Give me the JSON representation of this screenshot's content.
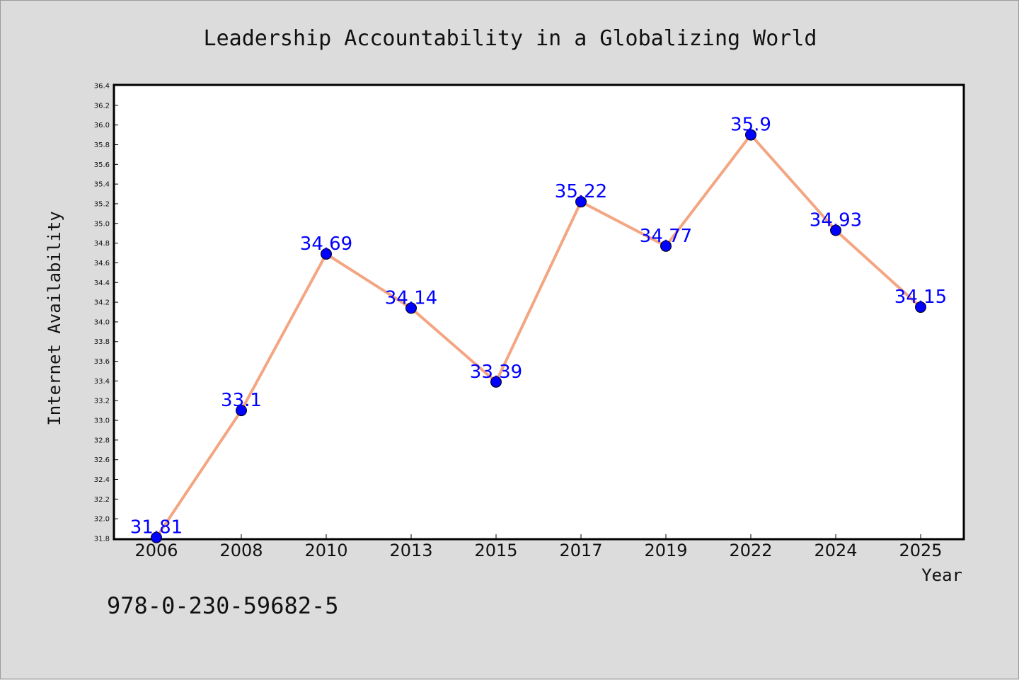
{
  "chart_data": {
    "type": "line",
    "title": "Leadership Accountability in a Globalizing World",
    "xlabel": "Year",
    "ylabel": "Internet Availability",
    "categories": [
      "2006",
      "2008",
      "2010",
      "2013",
      "2015",
      "2017",
      "2019",
      "2022",
      "2024",
      "2025"
    ],
    "series": [
      {
        "values": [
          31.81,
          33.1,
          34.69,
          34.14,
          33.39,
          35.22,
          34.77,
          35.9,
          34.93,
          34.15
        ],
        "labels": [
          "31.81",
          "33.1",
          "34.69",
          "34.14",
          "33.39",
          "35.22",
          "34.77",
          "35.9",
          "34.93",
          "34.15"
        ]
      }
    ],
    "ylim": [
      31.8,
      36.4
    ],
    "yticks": [
      "31.8",
      "32.0",
      "32.2",
      "32.4",
      "32.6",
      "32.8",
      "33.0",
      "33.2",
      "33.4",
      "33.6",
      "33.8",
      "34.0",
      "34.2",
      "34.4",
      "34.6",
      "34.8",
      "35.0",
      "35.2",
      "35.4",
      "35.6",
      "35.8",
      "36.0",
      "36.2",
      "36.4"
    ],
    "grid": false,
    "colors": {
      "line": "#f4a582",
      "marker": "#0000ff",
      "label": "#0000ff",
      "background": "#dcdcdc",
      "plot_bg": "#ffffff"
    }
  },
  "footnote": "978-0-230-59682-5"
}
